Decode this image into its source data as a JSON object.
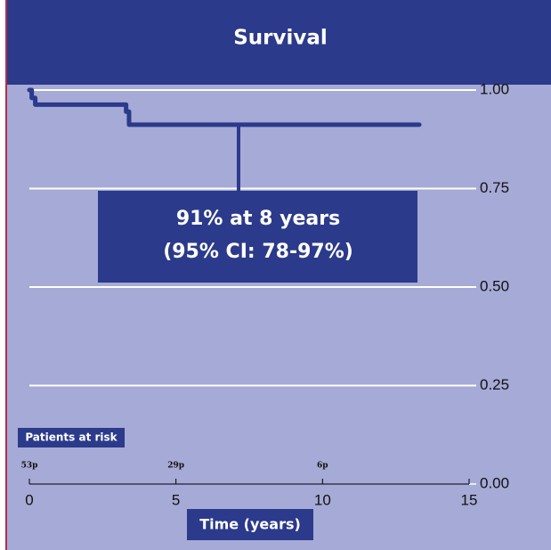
{
  "chart_data": {
    "type": "line",
    "title": "Survival",
    "xlabel": "Time (years)",
    "x": [
      0,
      0.08,
      0.08,
      0.2,
      0.2,
      3.3,
      3.3,
      3.4,
      3.4,
      13.3
    ],
    "values": [
      1.0,
      1.0,
      0.98,
      0.98,
      0.963,
      0.963,
      0.945,
      0.945,
      0.912,
      0.912
    ],
    "color": "#2b3a8a",
    "xlim": [
      0,
      15
    ],
    "ylim": [
      0,
      1
    ],
    "xticks": [
      0,
      5,
      10,
      15
    ],
    "yticks": [
      {
        "value": 0,
        "label": "0.00"
      },
      {
        "value": 0.25,
        "label": "0.25"
      },
      {
        "value": 0.5,
        "label": "0.50"
      },
      {
        "value": 0.75,
        "label": "0.75"
      },
      {
        "value": 1,
        "label": "1.00"
      }
    ],
    "grid": true,
    "annotation": [
      "91% at 8 years",
      "(95% CI: 78-97%)"
    ],
    "at_risk": {
      "label": "Patients at risk",
      "x": [
        0,
        5,
        10
      ],
      "labels": [
        "53p",
        "29p",
        "6p"
      ]
    }
  }
}
